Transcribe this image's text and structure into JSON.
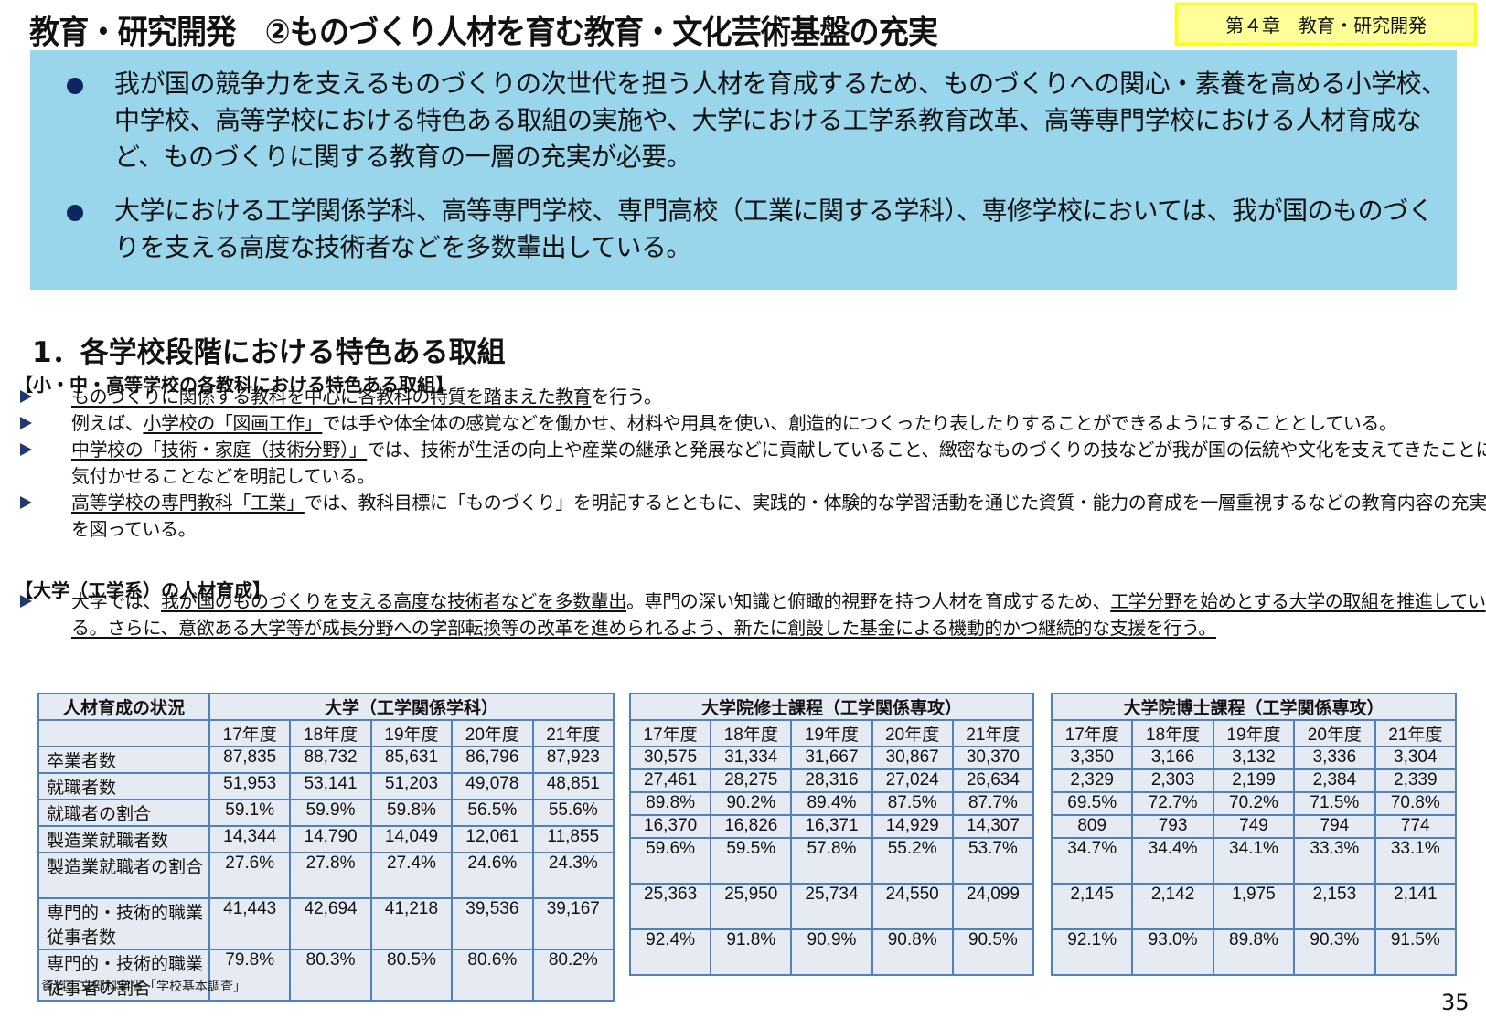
{
  "header": {
    "title": "教育・研究開発　②ものづくり人材を育む教育・文化芸術基盤の充実",
    "chapter_badge": "第４章　教育・研究開発"
  },
  "summary": {
    "bullets": [
      "我が国の競争力を支えるものづくりの次世代を担う人材を育成するため、ものづくりへの関心・素養を高める小学校、中学校、高等学校における特色ある取組の実施や、大学における工学系教育改革、高等専門学校における人材育成など、ものづくりに関する教育の一層の充実が必要。",
      "大学における工学関係学科、高等専門学校、専門高校（工業に関する学科）、専修学校においては、我が国のものづくりを支える高度な技術者などを多数輩出している。"
    ]
  },
  "section": {
    "heading": "1．各学校段階における特色ある取組",
    "school_heading": "【小・中・高等学校の各教科における特色ある取組】",
    "school_items": [
      {
        "parts": [
          {
            "text": "ものづくりに関係する教科を中心に各教科の特質を踏まえた教育",
            "u": true
          },
          {
            "text": "を行う。",
            "u": false
          }
        ]
      },
      {
        "parts": [
          {
            "text": "例えば、",
            "u": false
          },
          {
            "text": "小学校の「図画工作」",
            "u": true
          },
          {
            "text": "では手や体全体の感覚などを働かせ、材料や用具を使い、創造的につくったり表したりすることができるようにすることとしている。",
            "u": false
          }
        ]
      },
      {
        "parts": [
          {
            "text": "中学校の「技術・家庭（技術分野）」",
            "u": true
          },
          {
            "text": "では、技術が生活の向上や産業の継承と発展などに貢献していること、緻密なものづくりの技などが我が国の伝統や文化を支えてきたことに気付かせることなどを明記している。",
            "u": false
          }
        ]
      },
      {
        "parts": [
          {
            "text": "高等学校の専門教科「工業」",
            "u": true
          },
          {
            "text": "では、教科目標に「ものづくり」を明記するとともに、実践的・体験的な学習活動を通じた資質・能力の育成を一層重視するなどの教育内容の充実を図っている。",
            "u": false
          }
        ]
      }
    ],
    "university_heading": "【大学（工学系）の人材育成】",
    "university_items": [
      {
        "parts": [
          {
            "text": "大学では、",
            "u": false
          },
          {
            "text": "我が国のものづくりを支える高度な技術者などを多数輩出",
            "u": true
          },
          {
            "text": "。専門の深い知識と俯瞰的視野を持つ人材を育成するため、",
            "u": false
          },
          {
            "text": "工学分野を始めとする大学の取組を推進している。さらに、意欲ある大学等が成長分野への学部転換等の改革を進められるよう、新たに創設した基金による機動的かつ継続的な支援を行う。",
            "u": true
          }
        ]
      }
    ]
  },
  "chart_data": {
    "type": "table",
    "title": "人材育成の状況",
    "row_labels": [
      "卒業者数",
      "就職者数",
      "就職者の割合",
      "製造業就職者数",
      "製造業就職者の割合",
      "専門的・技術的職業従事者数",
      "専門的・技術的職業従事者の割合"
    ],
    "years": [
      "17年度",
      "18年度",
      "19年度",
      "20年度",
      "21年度"
    ],
    "tables": [
      {
        "group": "大学（工学関係学科）",
        "rows": [
          [
            "87,835",
            "88,732",
            "85,631",
            "86,796",
            "87,923"
          ],
          [
            "51,953",
            "53,141",
            "51,203",
            "49,078",
            "48,851"
          ],
          [
            "59.1%",
            "59.9%",
            "59.8%",
            "56.5%",
            "55.6%"
          ],
          [
            "14,344",
            "14,790",
            "14,049",
            "12,061",
            "11,855"
          ],
          [
            "27.6%",
            "27.8%",
            "27.4%",
            "24.6%",
            "24.3%"
          ],
          [
            "41,443",
            "42,694",
            "41,218",
            "39,536",
            "39,167"
          ],
          [
            "79.8%",
            "80.3%",
            "80.5%",
            "80.6%",
            "80.2%"
          ]
        ]
      },
      {
        "group": "大学院修士課程（工学関係専攻）",
        "rows": [
          [
            "30,575",
            "31,334",
            "31,667",
            "30,867",
            "30,370"
          ],
          [
            "27,461",
            "28,275",
            "28,316",
            "27,024",
            "26,634"
          ],
          [
            "89.8%",
            "90.2%",
            "89.4%",
            "87.5%",
            "87.7%"
          ],
          [
            "16,370",
            "16,826",
            "16,371",
            "14,929",
            "14,307"
          ],
          [
            "59.6%",
            "59.5%",
            "57.8%",
            "55.2%",
            "53.7%"
          ],
          [
            "25,363",
            "25,950",
            "25,734",
            "24,550",
            "24,099"
          ],
          [
            "92.4%",
            "91.8%",
            "90.9%",
            "90.8%",
            "90.5%"
          ]
        ]
      },
      {
        "group": "大学院博士課程（工学関係専攻）",
        "rows": [
          [
            "3,350",
            "3,166",
            "3,132",
            "3,336",
            "3,304"
          ],
          [
            "2,329",
            "2,303",
            "2,199",
            "2,384",
            "2,339"
          ],
          [
            "69.5%",
            "72.7%",
            "70.2%",
            "71.5%",
            "70.8%"
          ],
          [
            "809",
            "793",
            "749",
            "794",
            "774"
          ],
          [
            "34.7%",
            "34.4%",
            "34.1%",
            "33.3%",
            "33.1%"
          ],
          [
            "2,145",
            "2,142",
            "1,975",
            "2,153",
            "2,141"
          ],
          [
            "92.1%",
            "93.0%",
            "89.8%",
            "90.3%",
            "91.5%"
          ]
        ]
      }
    ]
  },
  "footer": {
    "source": "資料：文部科学省「学校基本調査」",
    "page_number": "35"
  },
  "colors": {
    "summary_bg": "#99d5eb",
    "badge_bg": "#ffff99",
    "badge_border": "#ffff00",
    "table_border": "#4f81bd",
    "table_bg": "#e6ebf3",
    "bullet": "#0d2660"
  }
}
